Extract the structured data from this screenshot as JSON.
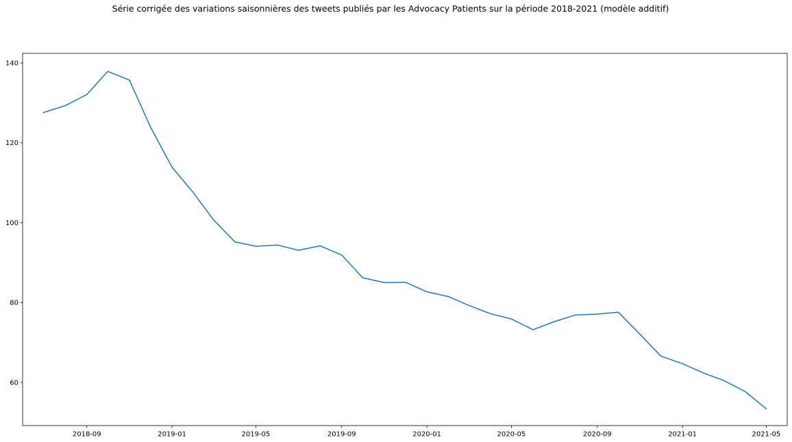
{
  "chart_data": {
    "type": "line",
    "title": "Série corrigée des variations saisonnières des tweets publiés par les Advocacy Patients sur la période 2018-2021 (modèle additif)",
    "xlabel": "",
    "ylabel": "",
    "xlim": [
      "2018-06-01",
      "2021-05-31"
    ],
    "ylim": [
      49.2,
      142.4
    ],
    "x_ticks": [
      {
        "date": "2018-09-01",
        "label": "2018-09"
      },
      {
        "date": "2019-01-01",
        "label": "2019-01"
      },
      {
        "date": "2019-05-01",
        "label": "2019-05"
      },
      {
        "date": "2019-09-01",
        "label": "2019-09"
      },
      {
        "date": "2020-01-01",
        "label": "2020-01"
      },
      {
        "date": "2020-05-01",
        "label": "2020-05"
      },
      {
        "date": "2020-09-01",
        "label": "2020-09"
      },
      {
        "date": "2021-01-01",
        "label": "2021-01"
      },
      {
        "date": "2021-05-01",
        "label": "2021-05"
      }
    ],
    "y_ticks": [
      60,
      80,
      100,
      120,
      140
    ],
    "grid": false,
    "color": "#1f77b4",
    "series": [
      {
        "x": [
          "2018-07-01",
          "2018-08-01",
          "2018-09-01",
          "2018-10-01",
          "2018-11-01",
          "2018-12-01",
          "2019-01-01",
          "2019-02-01",
          "2019-03-01",
          "2019-04-01",
          "2019-05-01",
          "2019-06-01",
          "2019-07-01",
          "2019-08-01",
          "2019-09-01",
          "2019-10-01",
          "2019-11-01",
          "2019-12-01",
          "2020-01-01",
          "2020-02-01",
          "2020-03-01",
          "2020-04-01",
          "2020-05-01",
          "2020-06-01",
          "2020-07-01",
          "2020-08-01",
          "2020-09-01",
          "2020-10-01",
          "2020-11-01",
          "2020-12-01",
          "2021-01-01",
          "2021-02-01",
          "2021-03-01",
          "2021-04-01",
          "2021-05-01"
        ],
        "y": [
          127.6,
          129.3,
          132.1,
          137.9,
          135.7,
          124.0,
          113.9,
          107.4,
          100.8,
          95.2,
          94.1,
          94.4,
          93.1,
          94.2,
          91.9,
          86.2,
          85.0,
          85.1,
          82.7,
          81.5,
          79.3,
          77.2,
          75.9,
          73.2,
          75.2,
          76.9,
          77.1,
          77.6,
          72.1,
          66.6,
          64.7,
          62.3,
          60.5,
          57.7,
          53.4
        ]
      }
    ]
  }
}
